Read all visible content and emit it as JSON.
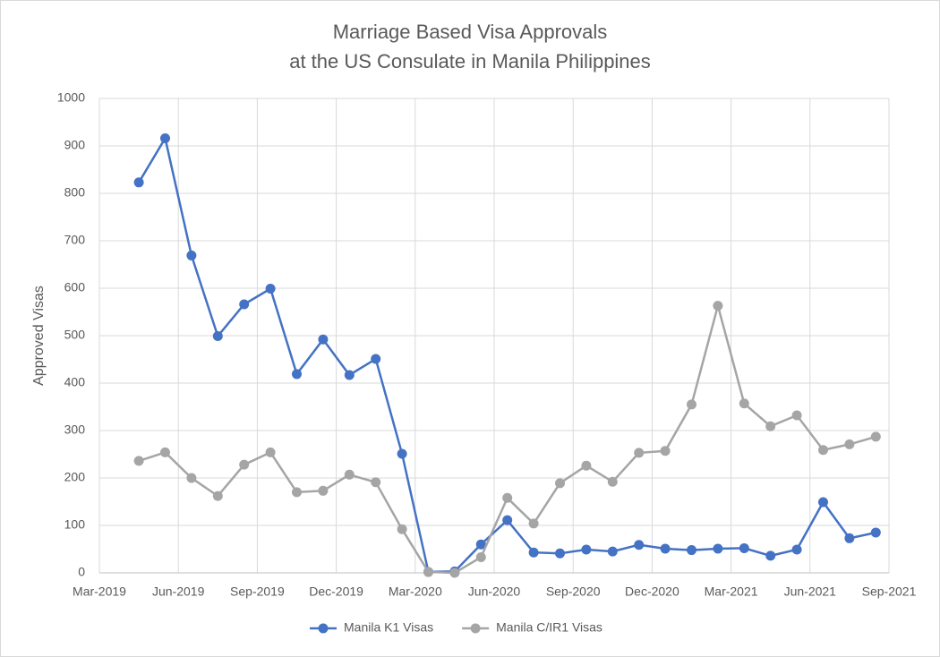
{
  "chart_data": {
    "type": "line",
    "title": [
      "Marriage Based Visa Approvals",
      "at the US Consulate in Manila Philippines"
    ],
    "y_label": "Approved Visas",
    "x": [
      "2019-04",
      "2019-05",
      "2019-06",
      "2019-07",
      "2019-08",
      "2019-09",
      "2019-10",
      "2019-11",
      "2019-12",
      "2020-01",
      "2020-02",
      "2020-03",
      "2020-04",
      "2020-05",
      "2020-06",
      "2020-07",
      "2020-08",
      "2020-09",
      "2020-10",
      "2020-11",
      "2020-12",
      "2021-01",
      "2021-02",
      "2021-03",
      "2021-04",
      "2021-05",
      "2021-06",
      "2021-07",
      "2021-08"
    ],
    "series": [
      {
        "name": "Manila K1 Visas",
        "color": "#4472c4",
        "values": [
          823,
          916,
          669,
          499,
          566,
          599,
          419,
          492,
          417,
          451,
          251,
          2,
          3,
          60,
          111,
          43,
          41,
          49,
          45,
          59,
          51,
          48,
          51,
          52,
          36,
          49,
          149,
          73,
          85
        ]
      },
      {
        "name": "Manila C/IR1 Visas",
        "color": "#a5a5a5",
        "values": [
          236,
          254,
          200,
          162,
          228,
          254,
          170,
          173,
          207,
          191,
          92,
          2,
          0,
          33,
          158,
          104,
          189,
          226,
          192,
          253,
          257,
          355,
          563,
          357,
          309,
          332,
          259,
          271,
          287
        ]
      }
    ],
    "xlim": [
      "2019-03",
      "2021-09"
    ],
    "xticks": [
      {
        "value": "2019-03",
        "label": "Mar-2019"
      },
      {
        "value": "2019-06",
        "label": "Jun-2019"
      },
      {
        "value": "2019-09",
        "label": "Sep-2019"
      },
      {
        "value": "2019-12",
        "label": "Dec-2019"
      },
      {
        "value": "2020-03",
        "label": "Mar-2020"
      },
      {
        "value": "2020-06",
        "label": "Jun-2020"
      },
      {
        "value": "2020-09",
        "label": "Sep-2020"
      },
      {
        "value": "2020-12",
        "label": "Dec-2020"
      },
      {
        "value": "2021-03",
        "label": "Mar-2021"
      },
      {
        "value": "2021-06",
        "label": "Jun-2021"
      },
      {
        "value": "2021-09",
        "label": "Sep-2021"
      }
    ],
    "ylim": [
      0,
      1000
    ],
    "yticks": [
      0,
      100,
      200,
      300,
      400,
      500,
      600,
      700,
      800,
      900,
      1000
    ],
    "grid": true,
    "legend": "bottom"
  }
}
